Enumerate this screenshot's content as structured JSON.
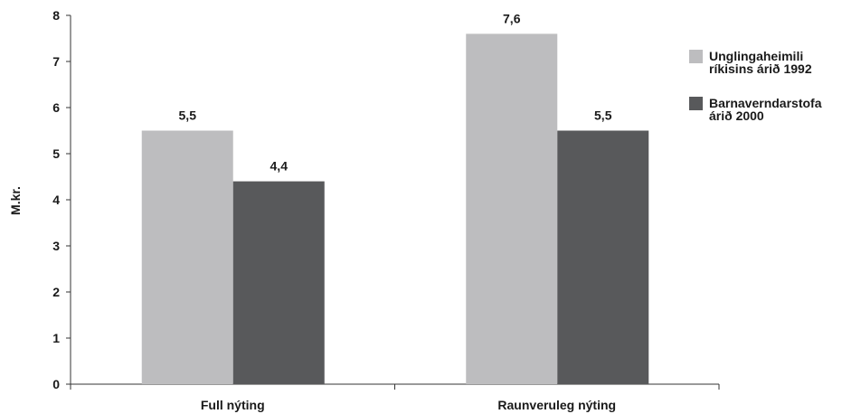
{
  "chart_data": {
    "type": "bar",
    "categories": [
      "Full nýting",
      "Raunveruleg nýting"
    ],
    "series": [
      {
        "name": "Unglingaheimili ríkisins árið 1992",
        "legend_lines": [
          "Unglingaheimili",
          "ríkisins árið 1992"
        ],
        "values": [
          5.5,
          7.6
        ],
        "labels": [
          "5,5",
          "7,6"
        ],
        "color": "#bdbdbf"
      },
      {
        "name": "Barnaverndarstofa árið 2000",
        "legend_lines": [
          "Barnaverndarstofa",
          "árið 2000"
        ],
        "values": [
          4.4,
          5.5
        ],
        "labels": [
          "4,4",
          "5,5"
        ],
        "color": "#58595b"
      }
    ],
    "ylabel": "M.kr.",
    "ylim": [
      0,
      8
    ],
    "yticks": [
      "0",
      "1",
      "2",
      "3",
      "4",
      "5",
      "6",
      "7",
      "8"
    ],
    "grid": false,
    "legend_position": "right"
  }
}
